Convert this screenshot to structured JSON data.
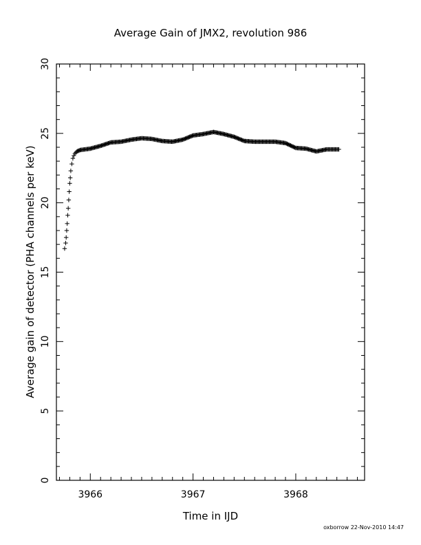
{
  "chart_data": {
    "type": "scatter",
    "title": "Average Gain of JMX2, revolution 986",
    "xlabel": "Time in IJD",
    "ylabel": "Average gain of detector (PHA channels per keV)",
    "xlim": [
      3965.67,
      3968.67
    ],
    "ylim": [
      0,
      30
    ],
    "xticks": [
      "3966",
      "3967",
      "3968"
    ],
    "yticks": [
      "0",
      "5",
      "10",
      "15",
      "20",
      "25",
      "30"
    ],
    "marker": "+",
    "color": "#000000",
    "grid": false,
    "series": [
      {
        "x": [
          3965.75,
          3965.76,
          3965.765,
          3965.77,
          3965.775,
          3965.78,
          3965.785,
          3965.79,
          3965.795,
          3965.8,
          3965.805,
          3965.81,
          3965.82,
          3965.83,
          3965.84,
          3965.85,
          3965.87,
          3965.9,
          3965.95,
          3966.0,
          3966.1,
          3966.2,
          3966.3,
          3966.4,
          3966.5,
          3966.6,
          3966.7,
          3966.8,
          3966.9,
          3967.0,
          3967.1,
          3967.2,
          3967.3,
          3967.4,
          3967.5,
          3967.6,
          3967.7,
          3967.8,
          3967.9,
          3968.0,
          3968.1,
          3968.2,
          3968.3,
          3968.42
        ],
        "y": [
          16.7,
          17.1,
          17.5,
          18.0,
          18.5,
          19.1,
          19.6,
          20.2,
          20.8,
          21.4,
          21.8,
          22.3,
          22.8,
          23.2,
          23.4,
          23.55,
          23.7,
          23.8,
          23.85,
          23.9,
          24.1,
          24.35,
          24.4,
          24.55,
          24.65,
          24.6,
          24.45,
          24.4,
          24.55,
          24.85,
          24.95,
          25.1,
          24.95,
          24.75,
          24.45,
          24.4,
          24.4,
          24.4,
          24.3,
          23.95,
          23.9,
          23.7,
          23.85,
          23.85
        ]
      }
    ]
  },
  "footer_stamp": "oxborrow 22-Nov-2010 14:47"
}
